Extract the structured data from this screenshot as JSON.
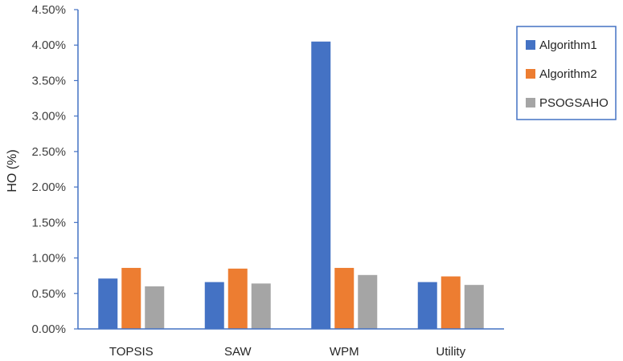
{
  "chart_data": {
    "type": "bar",
    "title": "",
    "xlabel": "",
    "ylabel": "HO (%)",
    "categories": [
      "TOPSIS",
      "SAW",
      "WPM",
      "Utility"
    ],
    "series": [
      {
        "name": "Algorithm1",
        "color": "#4472c4",
        "values": [
          0.71,
          0.66,
          4.05,
          0.66
        ]
      },
      {
        "name": "Algorithm2",
        "color": "#ed7d31",
        "values": [
          0.86,
          0.85,
          0.86,
          0.74
        ]
      },
      {
        "name": "PSOGSAHO",
        "color": "#a5a5a5",
        "values": [
          0.6,
          0.64,
          0.76,
          0.62
        ]
      }
    ],
    "ylim": [
      0,
      4.5
    ],
    "yticks": [
      "0.00%",
      "0.50%",
      "1.00%",
      "1.50%",
      "2.00%",
      "2.50%",
      "3.00%",
      "3.50%",
      "4.00%",
      "4.50%"
    ],
    "grid": false,
    "legend_position": "right",
    "axis_color": "#4472c4"
  }
}
